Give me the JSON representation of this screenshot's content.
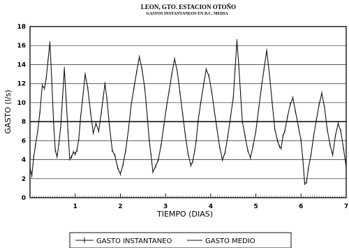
{
  "chart_data": {
    "type": "line",
    "title": "LEON, GTO. ESTACION OTOÑO",
    "subtitle": "GASTOS INSTANTANEOS EN D.C. MEDIA",
    "xlabel": "TIEMPO (DIAS)",
    "ylabel": "GASTO (l/s)",
    "xlim": [
      0,
      7
    ],
    "ylim": [
      0,
      18
    ],
    "x_ticks": [
      1,
      2,
      3,
      4,
      5,
      6,
      7
    ],
    "y_ticks": [
      0,
      2,
      4,
      6,
      8,
      10,
      12,
      14,
      16,
      18
    ],
    "x_tick_labels": [
      "1",
      "2",
      "3",
      "4",
      "5",
      "6",
      "7"
    ],
    "y_tick_labels": [
      "0",
      "2",
      "4",
      "6",
      "8",
      "10",
      "12",
      "14",
      "16",
      "18"
    ],
    "grid": "horizontal",
    "legend_position": "bottom",
    "series": [
      {
        "name": "GASTO INSTANTANEO",
        "style": "solid-with-markers",
        "x": [
          0.0,
          0.04,
          0.08,
          0.12,
          0.17,
          0.22,
          0.27,
          0.32,
          0.36,
          0.4,
          0.44,
          0.48,
          0.52,
          0.56,
          0.6,
          0.64,
          0.68,
          0.72,
          0.76,
          0.8,
          0.84,
          0.88,
          0.92,
          0.96,
          1.0,
          1.04,
          1.08,
          1.12,
          1.16,
          1.22,
          1.28,
          1.34,
          1.4,
          1.46,
          1.52,
          1.58,
          1.62,
          1.66,
          1.7,
          1.76,
          1.82,
          1.88,
          1.94,
          2.0,
          2.06,
          2.12,
          2.18,
          2.24,
          2.3,
          2.36,
          2.42,
          2.48,
          2.54,
          2.6,
          2.64,
          2.68,
          2.72,
          2.78,
          2.84,
          2.9,
          2.96,
          3.02,
          3.08,
          3.14,
          3.2,
          3.26,
          3.32,
          3.38,
          3.44,
          3.5,
          3.56,
          3.6,
          3.64,
          3.68,
          3.72,
          3.78,
          3.84,
          3.9,
          3.96,
          4.02,
          4.08,
          4.14,
          4.2,
          4.26,
          4.32,
          4.38,
          4.44,
          4.5,
          4.54,
          4.58,
          4.62,
          4.66,
          4.7,
          4.76,
          4.82,
          4.88,
          4.94,
          5.0,
          5.06,
          5.12,
          5.18,
          5.24,
          5.3,
          5.36,
          5.42,
          5.48,
          5.52,
          5.56,
          5.6,
          5.64,
          5.7,
          5.76,
          5.82,
          5.88,
          5.94,
          6.0,
          6.04,
          6.08,
          6.12,
          6.16,
          6.22,
          6.28,
          6.34,
          6.4,
          6.46,
          6.52,
          6.58,
          6.64,
          6.7,
          6.76,
          6.82,
          6.88,
          6.94,
          7.0
        ],
        "y": [
          3.2,
          2.3,
          4.2,
          5.5,
          7.0,
          9.0,
          11.8,
          11.5,
          12.6,
          14.5,
          16.3,
          12.5,
          8.0,
          5.0,
          4.3,
          5.7,
          7.5,
          10.5,
          13.6,
          10.3,
          7.0,
          4.1,
          4.3,
          4.8,
          4.6,
          5.0,
          6.2,
          8.5,
          10.2,
          13.0,
          11.5,
          9.0,
          6.8,
          7.8,
          7.0,
          9.0,
          10.5,
          12.0,
          10.5,
          7.5,
          5.0,
          4.4,
          3.2,
          2.5,
          3.5,
          5.0,
          7.2,
          9.8,
          11.5,
          13.2,
          14.8,
          13.5,
          11.5,
          8.3,
          6.0,
          4.5,
          2.7,
          3.3,
          4.0,
          5.5,
          7.5,
          9.5,
          11.2,
          13.0,
          14.6,
          13.3,
          11.0,
          8.8,
          6.5,
          4.6,
          3.4,
          3.8,
          4.8,
          6.0,
          8.0,
          10.0,
          11.8,
          13.5,
          12.8,
          11.2,
          9.2,
          7.2,
          5.3,
          4.0,
          4.8,
          6.5,
          8.5,
          10.5,
          13.5,
          16.5,
          14.0,
          11.0,
          8.0,
          6.5,
          5.0,
          4.2,
          5.5,
          7.0,
          9.3,
          11.5,
          13.5,
          15.5,
          13.0,
          10.0,
          7.2,
          6.0,
          5.4,
          5.2,
          6.5,
          7.0,
          8.5,
          9.8,
          10.5,
          9.0,
          7.5,
          6.0,
          4.0,
          1.5,
          1.6,
          3.0,
          4.5,
          6.5,
          8.2,
          9.8,
          11.0,
          9.5,
          7.2,
          5.6,
          4.5,
          6.5,
          7.8,
          7.0,
          5.2,
          3.2
        ]
      },
      {
        "name": "GASTO MEDIO",
        "style": "solid",
        "x": [
          0,
          7
        ],
        "y": [
          8.0,
          8.0
        ]
      }
    ]
  }
}
